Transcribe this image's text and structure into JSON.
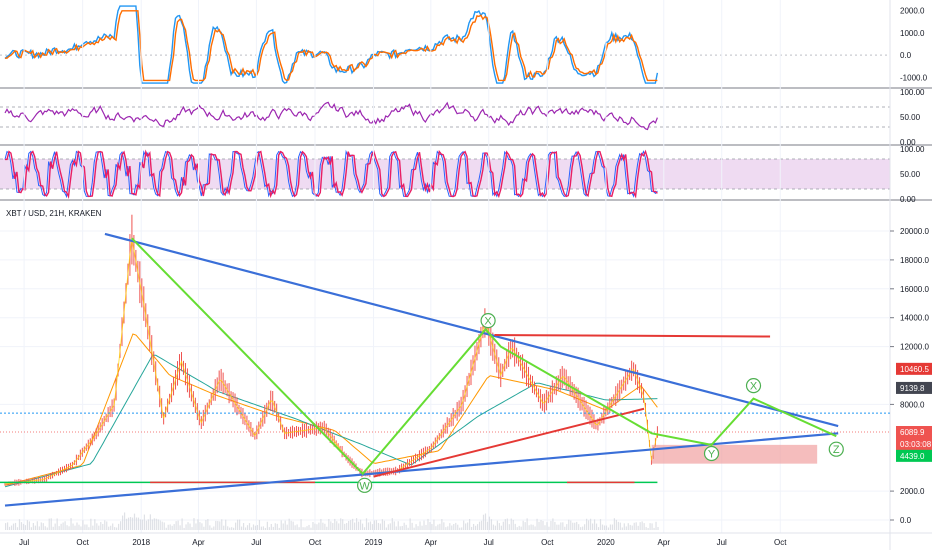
{
  "chart_data": {
    "type": "line",
    "symbol": "XBT / USD, 21H, KRAKEN",
    "x_ticks": [
      "Jul",
      "Oct",
      "2018",
      "Apr",
      "Jul",
      "Oct",
      "2019",
      "Apr",
      "Jul",
      "Oct",
      "2020",
      "Apr",
      "Jul",
      "Oct"
    ],
    "price_axis": {
      "ticks": [
        "20000.0",
        "18000.0",
        "16000.0",
        "14000.0",
        "12000.0",
        "8000.0",
        "2000.0",
        "0.0"
      ],
      "ylim": [
        0,
        21000
      ]
    },
    "price_tags": [
      {
        "text": "10460.5",
        "color": "#e53935"
      },
      {
        "text": "9139.8",
        "color": "#434651"
      },
      {
        "text": "6089.9",
        "color": "#ffffff"
      },
      {
        "text": "03:03:08",
        "color": "#ffffff"
      },
      {
        "text": "4439.0",
        "color": "#4caf50"
      }
    ],
    "panels": [
      {
        "name": "macd",
        "ticks": [
          "2000.0",
          "1000.0",
          "0.0",
          "-1000.0"
        ],
        "ylim": [
          -1300,
          2300
        ]
      },
      {
        "name": "rsi",
        "ticks": [
          "100.00",
          "50.00",
          "0.00"
        ],
        "ylim": [
          0,
          100
        ]
      },
      {
        "name": "stoch",
        "ticks": [
          "100.00",
          "50.00",
          "0.00"
        ],
        "ylim": [
          0,
          100
        ]
      }
    ],
    "price_series": [
      {
        "x": "2017-06-01",
        "y": 2500
      },
      {
        "x": "2017-08-01",
        "y": 2800
      },
      {
        "x": "2017-09-15",
        "y": 3800
      },
      {
        "x": "2017-10-20",
        "y": 5800
      },
      {
        "x": "2017-11-20",
        "y": 8000
      },
      {
        "x": "2017-12-17",
        "y": 19500
      },
      {
        "x": "2018-01-05",
        "y": 15000
      },
      {
        "x": "2018-02-05",
        "y": 7000
      },
      {
        "x": "2018-03-05",
        "y": 11000
      },
      {
        "x": "2018-04-05",
        "y": 6700
      },
      {
        "x": "2018-05-05",
        "y": 9800
      },
      {
        "x": "2018-06-29",
        "y": 5800
      },
      {
        "x": "2018-07-25",
        "y": 8400
      },
      {
        "x": "2018-08-14",
        "y": 6000
      },
      {
        "x": "2018-10-15",
        "y": 6400
      },
      {
        "x": "2018-11-20",
        "y": 4300
      },
      {
        "x": "2018-12-15",
        "y": 3200
      },
      {
        "x": "2019-02-07",
        "y": 3400
      },
      {
        "x": "2019-04-02",
        "y": 5000
      },
      {
        "x": "2019-05-20",
        "y": 8000
      },
      {
        "x": "2019-06-26",
        "y": 13800
      },
      {
        "x": "2019-07-20",
        "y": 10000
      },
      {
        "x": "2019-08-06",
        "y": 12000
      },
      {
        "x": "2019-09-25",
        "y": 8000
      },
      {
        "x": "2019-10-26",
        "y": 10000
      },
      {
        "x": "2019-12-18",
        "y": 6500
      },
      {
        "x": "2020-02-13",
        "y": 10500
      },
      {
        "x": "2020-03-01",
        "y": 8500
      },
      {
        "x": "2020-03-13",
        "y": 4000
      },
      {
        "x": "2020-03-22",
        "y": 6089.9
      }
    ],
    "ema_series": [
      {
        "x": "2017-06-01",
        "y": 2400
      },
      {
        "x": "2017-10-01",
        "y": 3800
      },
      {
        "x": "2017-12-20",
        "y": 13000
      },
      {
        "x": "2018-02-15",
        "y": 10000
      },
      {
        "x": "2018-05-01",
        "y": 8600
      },
      {
        "x": "2018-08-01",
        "y": 7200
      },
      {
        "x": "2018-11-01",
        "y": 6200
      },
      {
        "x": "2019-01-01",
        "y": 3900
      },
      {
        "x": "2019-04-15",
        "y": 4800
      },
      {
        "x": "2019-07-01",
        "y": 10000
      },
      {
        "x": "2019-10-15",
        "y": 9000
      },
      {
        "x": "2020-01-01",
        "y": 7600
      },
      {
        "x": "2020-02-25",
        "y": 9300
      },
      {
        "x": "2020-03-22",
        "y": 7800
      }
    ],
    "sma_series": [
      {
        "x": "2017-06-01",
        "y": 2300
      },
      {
        "x": "2017-10-15",
        "y": 3900
      },
      {
        "x": "2018-01-20",
        "y": 11500
      },
      {
        "x": "2018-05-01",
        "y": 8900
      },
      {
        "x": "2018-09-01",
        "y": 7000
      },
      {
        "x": "2018-12-15",
        "y": 5200
      },
      {
        "x": "2019-03-01",
        "y": 3800
      },
      {
        "x": "2019-06-15",
        "y": 7200
      },
      {
        "x": "2019-09-15",
        "y": 9500
      },
      {
        "x": "2020-01-01",
        "y": 8300
      },
      {
        "x": "2020-03-22",
        "y": 8400
      }
    ],
    "drawings": {
      "wave_path": [
        {
          "x": "2017-12-17",
          "y": 19500
        },
        {
          "x": "2018-12-15",
          "y": 3200
        },
        {
          "x": "2019-06-26",
          "y": 13200
        },
        {
          "x": "2019-07-20",
          "y": 12000
        },
        {
          "x": "2020-03-13",
          "y": 6000
        },
        {
          "x": "2020-06-15",
          "y": 5200
        },
        {
          "x": "2020-08-20",
          "y": 8400
        },
        {
          "x": "2020-12-28",
          "y": 5800
        }
      ],
      "upper_trendline": [
        {
          "x": "2017-11-05",
          "y": 19800
        },
        {
          "x": "2020-12-31",
          "y": 6500
        }
      ],
      "lower_trendline": [
        {
          "x": "2017-06-01",
          "y": 1000
        },
        {
          "x": "2020-12-31",
          "y": 6000
        }
      ],
      "red_support_line": [
        {
          "x": "2019-01-01",
          "y": 3000
        },
        {
          "x": "2020-03-01",
          "y": 7700
        }
      ],
      "red_resistance_line": [
        {
          "x": "2019-07-10",
          "y": 12800
        },
        {
          "x": "2020-09-15",
          "y": 12700
        }
      ],
      "wave_labels": [
        {
          "text": "X",
          "x": "2019-06-30",
          "y": 13800,
          "color": "#4caf50"
        },
        {
          "text": "W",
          "x": "2018-12-18",
          "y": 2400,
          "color": "#4caf50"
        },
        {
          "text": "Y",
          "x": "2020-06-15",
          "y": 4600,
          "color": "#4caf50"
        },
        {
          "text": "X",
          "x": "2020-08-20",
          "y": 9300,
          "color": "#4caf50"
        },
        {
          "text": "Z",
          "x": "2020-12-28",
          "y": 4900,
          "color": "#4caf50"
        }
      ]
    }
  }
}
